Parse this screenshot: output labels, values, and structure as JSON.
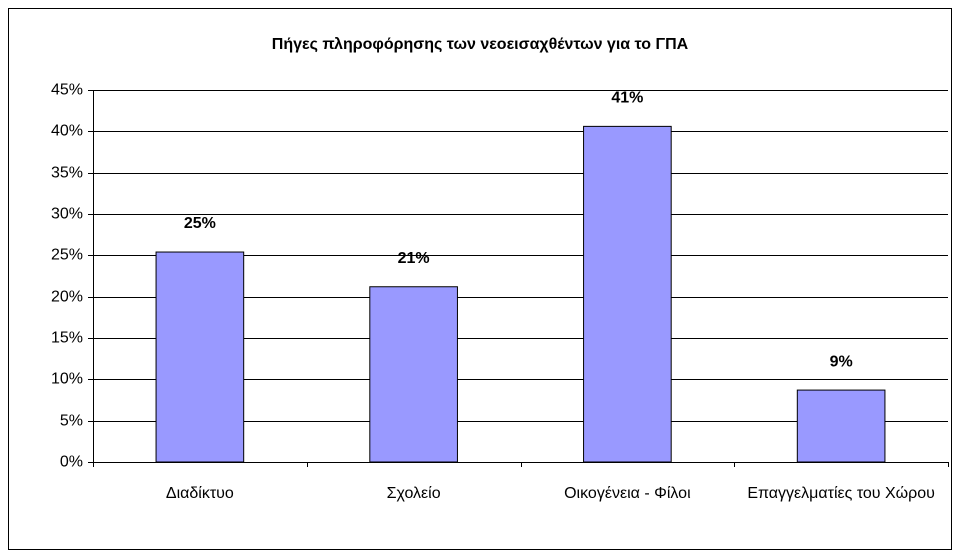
{
  "chart_data": {
    "type": "bar",
    "title": "Πήγες πληροφόρησης των νεοεισαχθέντων για το ΓΠΑ",
    "categories": [
      "Διαδίκτυο",
      "Σχολείο",
      "Οικογένεια - Φίλοι",
      "Επαγγελματίες του Χώρου"
    ],
    "values": [
      25.4,
      21.2,
      40.6,
      8.7
    ],
    "value_labels": [
      "25%",
      "21%",
      "41%",
      "9%"
    ],
    "color": "#9999ff",
    "ylim": [
      0,
      45
    ],
    "yticks": [
      {
        "value": 0,
        "label": "0%"
      },
      {
        "value": 5,
        "label": "5%"
      },
      {
        "value": 10,
        "label": "10%"
      },
      {
        "value": 15,
        "label": "15%"
      },
      {
        "value": 20,
        "label": "20%"
      },
      {
        "value": 25,
        "label": "25%"
      },
      {
        "value": 30,
        "label": "30%"
      },
      {
        "value": 35,
        "label": "35%"
      },
      {
        "value": 40,
        "label": "40%"
      },
      {
        "value": 45,
        "label": "45%"
      }
    ],
    "grid": true
  }
}
